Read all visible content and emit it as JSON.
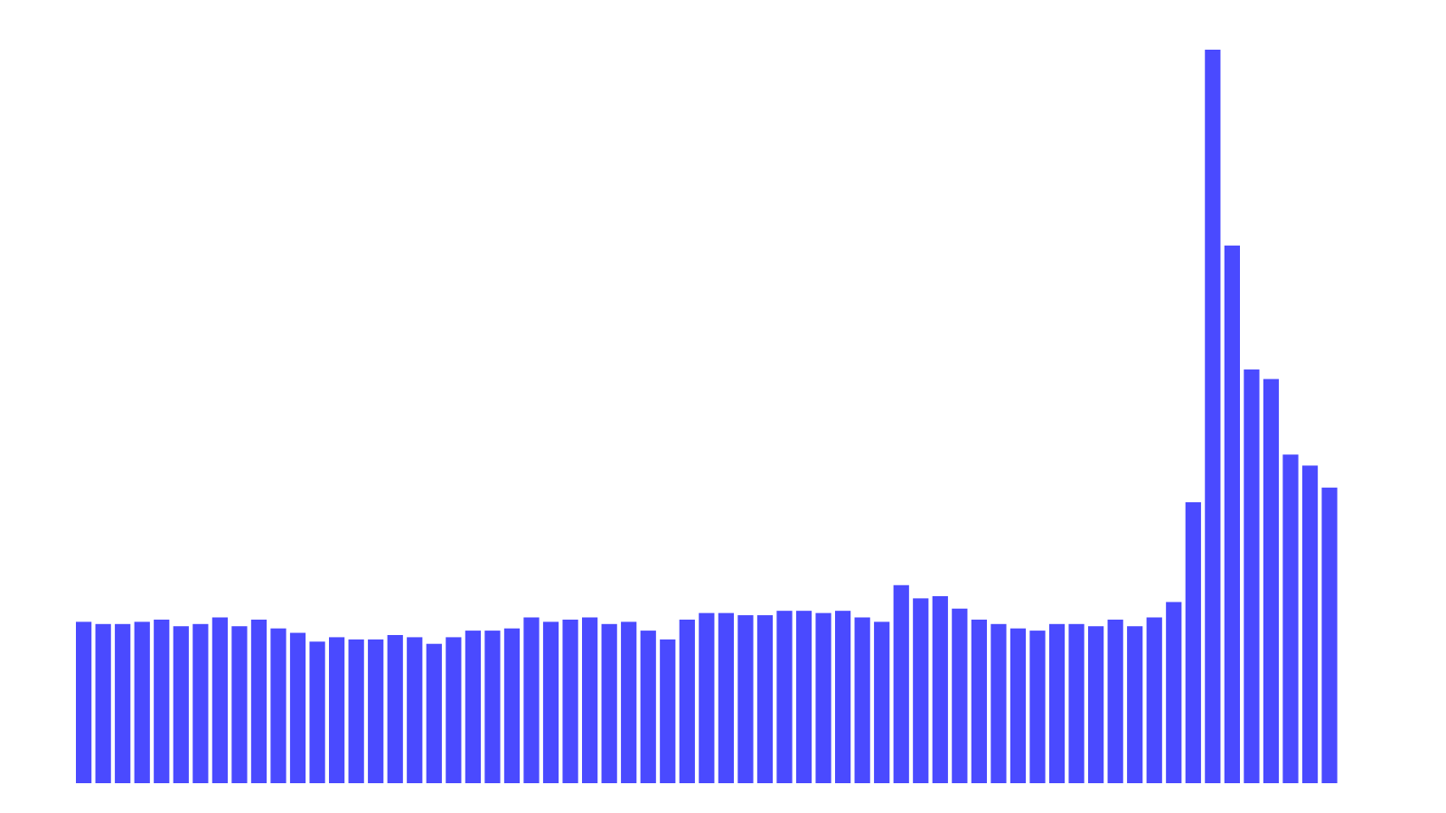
{
  "chart_data": {
    "type": "bar",
    "title": "",
    "xlabel": "",
    "ylabel": "",
    "ylim": [
      0,
      100
    ],
    "grid": false,
    "legend": "none",
    "colors": {
      "bar": "#4a4aff",
      "background": "#ffffff"
    },
    "values": [
      22.0,
      21.7,
      21.7,
      22.0,
      22.3,
      21.4,
      21.7,
      22.6,
      21.4,
      22.3,
      21.1,
      20.5,
      19.3,
      19.9,
      19.6,
      19.6,
      20.2,
      19.9,
      19.0,
      19.9,
      20.8,
      20.8,
      21.1,
      22.6,
      22.0,
      22.3,
      22.6,
      21.7,
      22.0,
      20.8,
      19.6,
      22.3,
      23.2,
      23.2,
      22.9,
      22.9,
      23.5,
      23.5,
      23.2,
      23.5,
      22.6,
      22.0,
      27.0,
      25.2,
      25.5,
      23.8,
      22.3,
      21.7,
      21.1,
      20.8,
      21.7,
      21.7,
      21.4,
      22.3,
      21.4,
      22.6,
      24.7,
      38.3,
      100.0,
      73.3,
      56.4,
      55.1,
      44.8,
      43.3,
      40.3
    ]
  }
}
